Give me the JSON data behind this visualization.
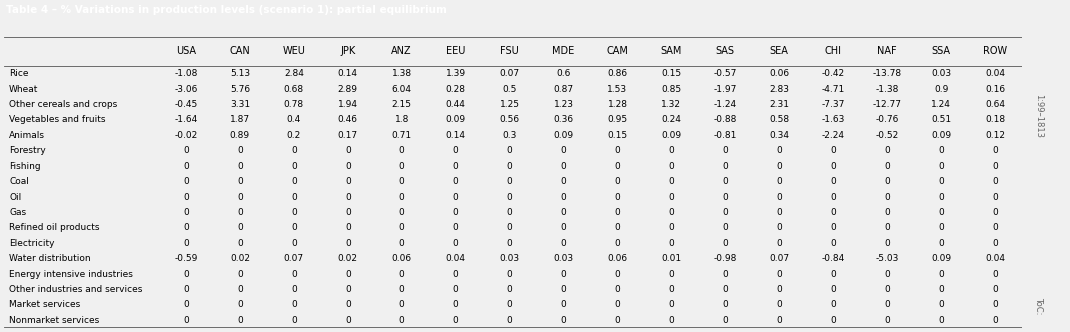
{
  "title": "Table 4 – % Variations in production levels (scenario 1): partial equilibrium",
  "columns": [
    "USA",
    "CAN",
    "WEU",
    "JPK",
    "ANZ",
    "EEU",
    "FSU",
    "MDE",
    "CAM",
    "SAM",
    "SAS",
    "SEA",
    "CHI",
    "NAF",
    "SSA",
    "ROW"
  ],
  "rows": [
    "Rice",
    "Wheat",
    "Other cereals and crops",
    "Vegetables and fruits",
    "Animals",
    "Forestry",
    "Fishing",
    "Coal",
    "Oil",
    "Gas",
    "Refined oil products",
    "Electricity",
    "Water distribution",
    "Energy intensive industries",
    "Other industries and services",
    "Market services",
    "Nonmarket services"
  ],
  "data": [
    [
      -1.08,
      5.13,
      2.84,
      0.14,
      1.38,
      1.39,
      0.07,
      0.6,
      0.86,
      0.15,
      -0.57,
      0.06,
      -0.42,
      -13.78,
      0.03,
      0.04
    ],
    [
      -3.06,
      5.76,
      0.68,
      2.89,
      6.04,
      0.28,
      0.5,
      0.87,
      1.53,
      0.85,
      -1.97,
      2.83,
      -4.71,
      -1.38,
      0.9,
      0.16
    ],
    [
      -0.45,
      3.31,
      0.78,
      1.94,
      2.15,
      0.44,
      1.25,
      1.23,
      1.28,
      1.32,
      -1.24,
      2.31,
      -7.37,
      -12.77,
      1.24,
      0.64
    ],
    [
      -1.64,
      1.87,
      0.4,
      0.46,
      1.8,
      0.09,
      0.56,
      0.36,
      0.95,
      0.24,
      -0.88,
      0.58,
      -1.63,
      -0.76,
      0.51,
      0.18
    ],
    [
      -0.02,
      0.89,
      0.2,
      0.17,
      0.71,
      0.14,
      0.3,
      0.09,
      0.15,
      0.09,
      -0.81,
      0.34,
      -2.24,
      -0.52,
      0.09,
      0.12
    ],
    [
      0,
      0,
      0,
      0,
      0,
      0,
      0,
      0,
      0,
      0,
      0,
      0,
      0,
      0,
      0,
      0
    ],
    [
      0,
      0,
      0,
      0,
      0,
      0,
      0,
      0,
      0,
      0,
      0,
      0,
      0,
      0,
      0,
      0
    ],
    [
      0,
      0,
      0,
      0,
      0,
      0,
      0,
      0,
      0,
      0,
      0,
      0,
      0,
      0,
      0,
      0
    ],
    [
      0,
      0,
      0,
      0,
      0,
      0,
      0,
      0,
      0,
      0,
      0,
      0,
      0,
      0,
      0,
      0
    ],
    [
      0,
      0,
      0,
      0,
      0,
      0,
      0,
      0,
      0,
      0,
      0,
      0,
      0,
      0,
      0,
      0
    ],
    [
      0,
      0,
      0,
      0,
      0,
      0,
      0,
      0,
      0,
      0,
      0,
      0,
      0,
      0,
      0,
      0
    ],
    [
      0,
      0,
      0,
      0,
      0,
      0,
      0,
      0,
      0,
      0,
      0,
      0,
      0,
      0,
      0,
      0
    ],
    [
      -0.59,
      0.02,
      0.07,
      0.02,
      0.06,
      0.04,
      0.03,
      0.03,
      0.06,
      0.01,
      -0.98,
      0.07,
      -0.84,
      -5.03,
      0.09,
      0.04
    ],
    [
      0,
      0,
      0,
      0,
      0,
      0,
      0,
      0,
      0,
      0,
      0,
      0,
      0,
      0,
      0,
      0
    ],
    [
      0,
      0,
      0,
      0,
      0,
      0,
      0,
      0,
      0,
      0,
      0,
      0,
      0,
      0,
      0,
      0
    ],
    [
      0,
      0,
      0,
      0,
      0,
      0,
      0,
      0,
      0,
      0,
      0,
      0,
      0,
      0,
      0,
      0
    ],
    [
      0,
      0,
      0,
      0,
      0,
      0,
      0,
      0,
      0,
      0,
      0,
      0,
      0,
      0,
      0,
      0
    ]
  ],
  "title_bg": "#2b2b2b",
  "title_color": "#ffffff",
  "header_color": "#000000",
  "cell_color": "#000000",
  "bg_color": "#f0f0f0",
  "table_bg": "#ffffff",
  "side_text": "1:99–1813",
  "side_text2": "ToC:",
  "title_fontsize": 7.5,
  "header_fontsize": 7.0,
  "cell_fontsize": 6.5,
  "row_label_fontsize": 6.5
}
